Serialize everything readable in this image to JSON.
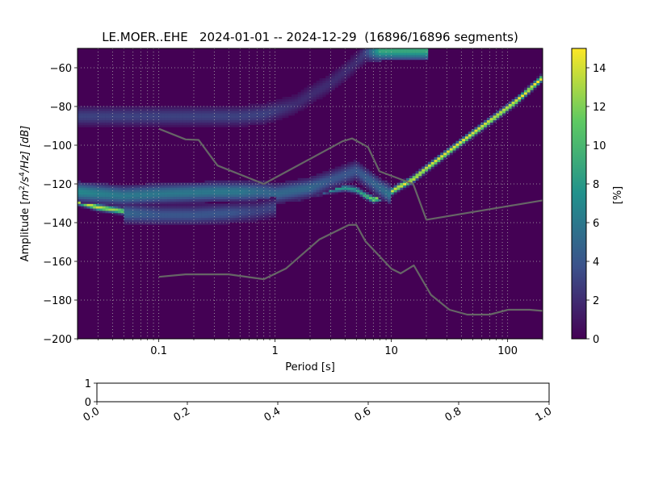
{
  "chart_data": [
    {
      "type": "heatmap",
      "title": "LE.MOER..EHE   2024-01-01 -- 2024-12-29  (16896/16896 segments)",
      "xlabel": "Period [s]",
      "ylabel_parts": {
        "a": "Amplitude [",
        "m": "m",
        "e2": "2",
        "s": "/s",
        "e4": "4",
        "b": "/Hz] [dB]"
      },
      "xscale": "log",
      "xlim": [
        0.02,
        200
      ],
      "ylim": [
        -200,
        -50
      ],
      "x_ticks": [
        {
          "v": 0.1,
          "label": "0.1"
        },
        {
          "v": 1,
          "label": "1"
        },
        {
          "v": 10,
          "label": "10"
        },
        {
          "v": 100,
          "label": "100"
        }
      ],
      "y_ticks": [
        {
          "v": -60,
          "label": "−60"
        },
        {
          "v": -80,
          "label": "−80"
        },
        {
          "v": -100,
          "label": "−100"
        },
        {
          "v": -120,
          "label": "−120"
        },
        {
          "v": -140,
          "label": "−140"
        },
        {
          "v": -160,
          "label": "−160"
        },
        {
          "v": -180,
          "label": "−180"
        },
        {
          "v": -200,
          "label": "−200"
        }
      ],
      "grid": true,
      "colorbar": {
        "label": "[%]",
        "range": [
          0,
          15
        ],
        "ticks": [
          {
            "v": 0,
            "label": "0"
          },
          {
            "v": 2,
            "label": "2"
          },
          {
            "v": 4,
            "label": "4"
          },
          {
            "v": 6,
            "label": "6"
          },
          {
            "v": 8,
            "label": "8"
          },
          {
            "v": 10,
            "label": "10"
          },
          {
            "v": 12,
            "label": "12"
          },
          {
            "v": 14,
            "label": "14"
          }
        ],
        "colormap": [
          "#440154",
          "#3b528b",
          "#21918c",
          "#5ec962",
          "#fde725"
        ]
      },
      "series": [
        {
          "role": "density-ridge",
          "x": [
            0.02,
            0.03,
            0.05,
            0.08,
            0.12,
            0.2,
            0.3,
            0.5,
            0.8,
            1.2,
            1.5,
            2,
            3,
            4,
            5,
            6,
            7,
            8,
            10,
            12,
            15,
            20,
            30,
            50,
            80,
            120,
            200
          ],
          "y": [
            -129,
            -132,
            -134,
            -133,
            -130,
            -128,
            -127,
            -126,
            -125,
            -126,
            -127,
            -125,
            -123,
            -122,
            -123,
            -126,
            -128,
            -127,
            -124,
            -121,
            -118,
            -112,
            -104,
            -94,
            -85,
            -77,
            -65
          ],
          "peak_percent": [
            14,
            14,
            12,
            9,
            7,
            7,
            7,
            7,
            7,
            9,
            12,
            9,
            8,
            8,
            8,
            10,
            12,
            13,
            14,
            15,
            15,
            15,
            15,
            15,
            15,
            15,
            15
          ]
        },
        {
          "role": "density-band",
          "x": [
            0.02,
            0.05,
            0.1,
            0.3,
            0.5,
            0.8,
            1,
            2,
            3,
            5,
            8,
            10
          ],
          "y": [
            -124,
            -126,
            -125,
            -124,
            -124,
            -124,
            -125,
            -122,
            -118,
            -113,
            -122,
            -126
          ],
          "peak_percent": [
            7,
            6,
            6,
            6,
            6,
            5,
            5,
            5,
            4,
            4,
            5,
            6
          ]
        },
        {
          "role": "density-band",
          "x": [
            0.05,
            0.1,
            0.2,
            0.4,
            0.7,
            1
          ],
          "y": [
            -135,
            -136,
            -136,
            -135,
            -134,
            -132
          ],
          "peak_percent": [
            5,
            4,
            4,
            4,
            3,
            3
          ]
        },
        {
          "role": "density-band",
          "x": [
            0.02,
            0.3,
            0.5,
            0.8,
            1.5,
            2,
            3,
            4,
            5,
            6,
            8,
            10,
            20
          ],
          "y": [
            -85,
            -85,
            -85,
            -84,
            -79,
            -74,
            -68,
            -62,
            -57,
            -52,
            -51,
            -51,
            -51
          ],
          "peak_percent": [
            3,
            3,
            3,
            3,
            2,
            2,
            2,
            2,
            2,
            3,
            9,
            9,
            9
          ]
        }
      ],
      "reference_curves": [
        {
          "color": "#666666",
          "x": [
            0.1,
            0.17,
            0.22,
            0.32,
            0.8,
            3.8,
            4.6,
            6.3,
            7.9,
            15.4,
            20,
            200
          ],
          "y": [
            -91.5,
            -97,
            -97.3,
            -110.5,
            -120,
            -98,
            -96.5,
            -101,
            -113.5,
            -120,
            -138.5,
            -128.5
          ]
        },
        {
          "color": "#666666",
          "x": [
            0.1,
            0.17,
            0.4,
            0.8,
            1.24,
            2.4,
            4.3,
            5,
            6,
            10,
            12,
            15.6,
            21.9,
            31.6,
            45,
            70,
            101,
            154,
            200
          ],
          "y": [
            -168,
            -166.7,
            -166.7,
            -169.2,
            -163.7,
            -148.7,
            -141.2,
            -141.1,
            -149.7,
            -163.8,
            -166.2,
            -162.1,
            -177.3,
            -185,
            -187.5,
            -187.5,
            -185,
            -185,
            -185.6
          ]
        }
      ]
    },
    {
      "type": "line",
      "xlim": [
        0,
        1
      ],
      "ylim": [
        0,
        1
      ],
      "x_ticks": [
        {
          "v": 0,
          "label": "0.0"
        },
        {
          "v": 0.2,
          "label": "0.2"
        },
        {
          "v": 0.4,
          "label": "0.4"
        },
        {
          "v": 0.6,
          "label": "0.6"
        },
        {
          "v": 0.8,
          "label": "0.8"
        },
        {
          "v": 1,
          "label": "1.0"
        }
      ],
      "y_ticks": [
        {
          "v": 0,
          "label": "0"
        },
        {
          "v": 1,
          "label": "1"
        }
      ],
      "series": []
    }
  ]
}
